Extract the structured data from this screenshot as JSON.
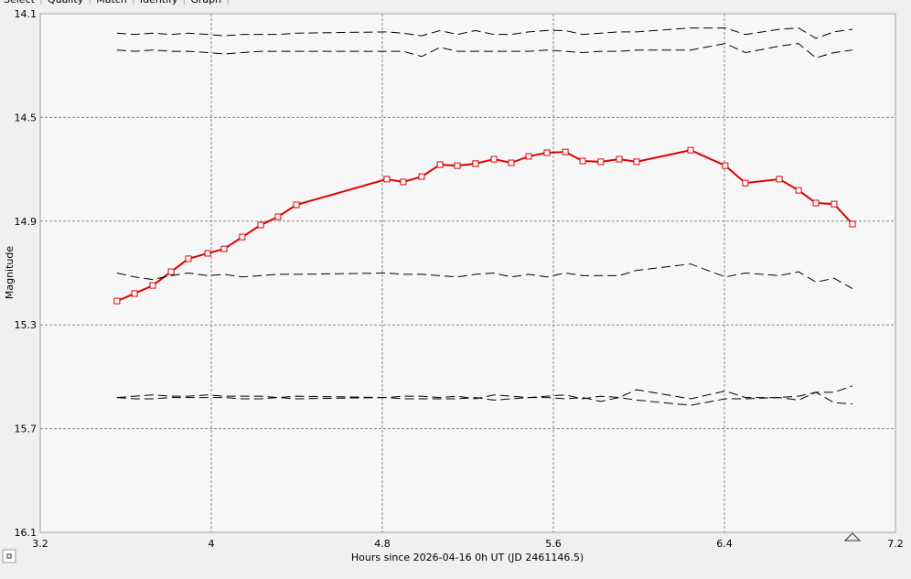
{
  "tabs": [
    "Select",
    "Quality",
    "Match",
    "Identify",
    "Graph"
  ],
  "chart_data": {
    "type": "line",
    "ylabel": "Magnitude",
    "xlabel": "Hours since 2026-04-16 0h UT (JD 2461146.5)",
    "xlim": [
      3.2,
      7.2
    ],
    "xticks": [
      3.2,
      4,
      4.8,
      5.6,
      6.4,
      7.2
    ],
    "ylim": [
      14.1,
      16.1
    ],
    "yticks": [
      14.1,
      14.5,
      14.9,
      15.3,
      15.7,
      16.1
    ],
    "y_inverted": true,
    "grid": true,
    "x": [
      3.559,
      3.641,
      3.726,
      3.812,
      3.893,
      3.983,
      4.06,
      4.145,
      4.231,
      4.312,
      4.398,
      4.821,
      4.898,
      4.984,
      5.07,
      5.151,
      5.236,
      5.322,
      5.403,
      5.485,
      5.57,
      5.656,
      5.737,
      5.822,
      5.908,
      5.989,
      6.242,
      6.404,
      6.498,
      6.657,
      6.747,
      6.828,
      6.913,
      6.999
    ],
    "series": [
      {
        "color": "#dd0000",
        "marker": "square",
        "dash": false,
        "values": [
          15.208,
          15.179,
          15.148,
          15.095,
          15.045,
          15.024,
          15.007,
          14.961,
          14.915,
          14.883,
          14.837,
          14.738,
          14.749,
          14.728,
          14.682,
          14.686,
          14.678,
          14.661,
          14.675,
          14.65,
          14.636,
          14.633,
          14.668,
          14.671,
          14.661,
          14.671,
          14.626,
          14.686,
          14.753,
          14.738,
          14.781,
          14.83,
          14.834,
          14.911
        ]
      },
      {
        "color": "#000000",
        "dash": true,
        "values": [
          14.175,
          14.18,
          14.175,
          14.18,
          14.175,
          14.18,
          14.185,
          14.18,
          14.18,
          14.18,
          14.175,
          14.17,
          14.175,
          14.185,
          14.165,
          14.18,
          14.165,
          14.18,
          14.18,
          14.17,
          14.165,
          14.165,
          14.18,
          14.175,
          14.17,
          14.17,
          14.155,
          14.155,
          14.18,
          14.16,
          14.155,
          14.195,
          14.17,
          14.16
        ]
      },
      {
        "color": "#000000",
        "dash": true,
        "values": [
          14.24,
          14.245,
          14.24,
          14.245,
          14.245,
          14.25,
          14.255,
          14.25,
          14.245,
          14.245,
          14.245,
          14.245,
          14.245,
          14.265,
          14.23,
          14.245,
          14.245,
          14.245,
          14.245,
          14.245,
          14.24,
          14.245,
          14.25,
          14.245,
          14.245,
          14.24,
          14.24,
          14.215,
          14.25,
          14.225,
          14.215,
          14.27,
          14.25,
          14.24
        ]
      },
      {
        "color": "#000000",
        "dash": true,
        "values": [
          15.1,
          15.115,
          15.125,
          15.11,
          15.1,
          15.11,
          15.105,
          15.115,
          15.11,
          15.105,
          15.105,
          15.1,
          15.105,
          15.105,
          15.11,
          15.115,
          15.105,
          15.1,
          15.115,
          15.105,
          15.115,
          15.1,
          15.11,
          15.11,
          15.11,
          15.09,
          15.065,
          15.115,
          15.1,
          15.11,
          15.095,
          15.135,
          15.12,
          15.16
        ]
      },
      {
        "color": "#000000",
        "dash": true,
        "values": [
          15.58,
          15.575,
          15.57,
          15.575,
          15.575,
          15.57,
          15.575,
          15.575,
          15.575,
          15.58,
          15.575,
          15.58,
          15.575,
          15.575,
          15.58,
          15.575,
          15.585,
          15.57,
          15.575,
          15.58,
          15.575,
          15.57,
          15.585,
          15.575,
          15.58,
          15.55,
          15.585,
          15.555,
          15.58,
          15.58,
          15.575,
          15.56,
          15.56,
          15.535
        ]
      },
      {
        "color": "#000000",
        "dash": true,
        "values": [
          15.58,
          15.585,
          15.585,
          15.58,
          15.58,
          15.58,
          15.58,
          15.585,
          15.585,
          15.58,
          15.585,
          15.58,
          15.585,
          15.585,
          15.585,
          15.585,
          15.58,
          15.59,
          15.585,
          15.58,
          15.58,
          15.585,
          15.58,
          15.595,
          15.58,
          15.59,
          15.61,
          15.585,
          15.585,
          15.58,
          15.59,
          15.56,
          15.6,
          15.605
        ]
      }
    ]
  }
}
